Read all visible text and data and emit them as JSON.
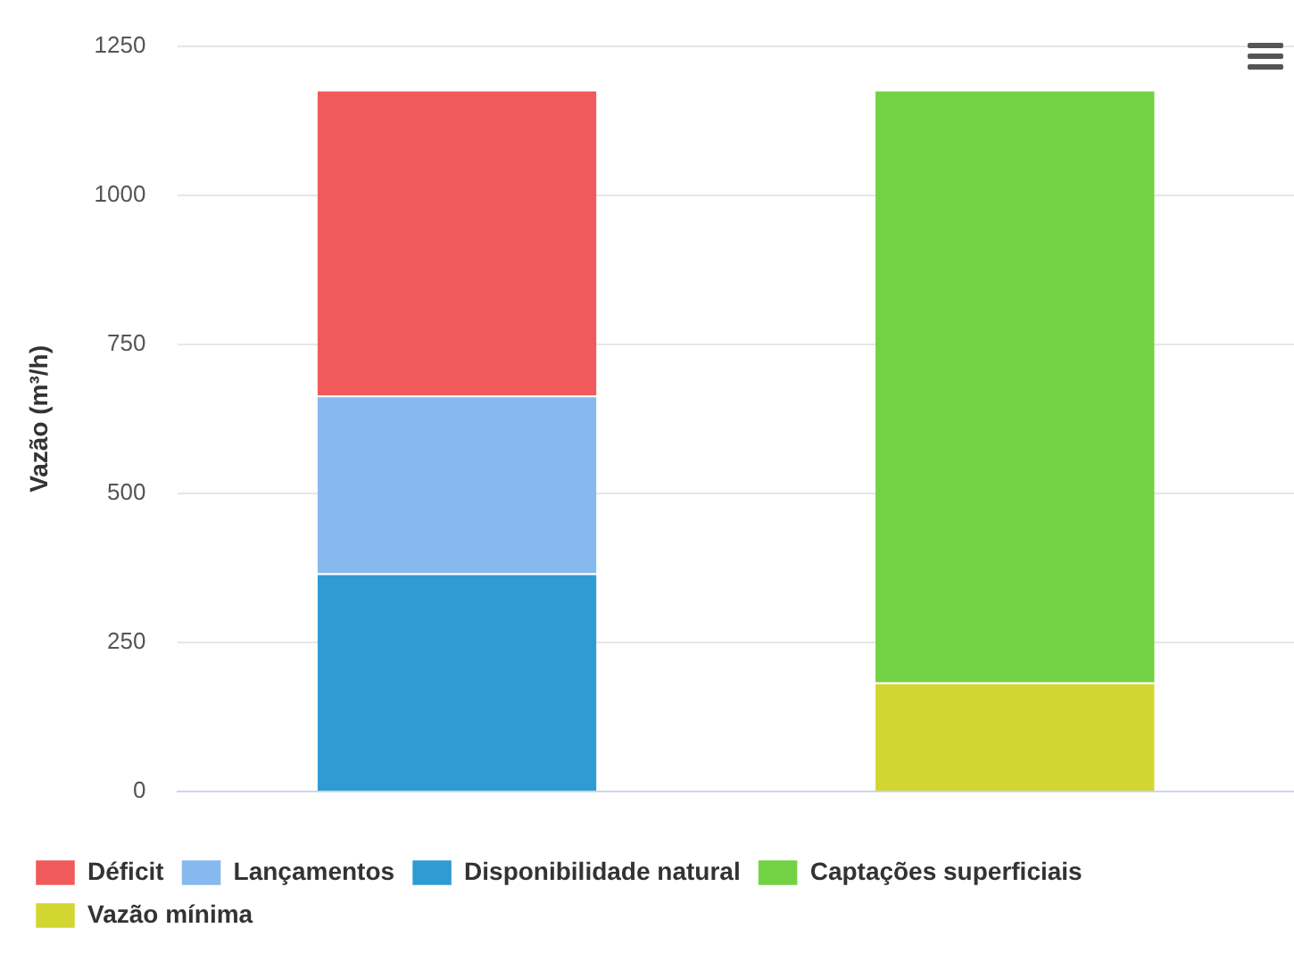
{
  "chart_data": {
    "type": "bar",
    "ylabel": "Vazão (m³/h)",
    "categories": [
      null,
      null
    ],
    "stacked": true,
    "series": [
      {
        "name": "Disponibilidade natural",
        "color": "#2f9bd3",
        "values": [
          366,
          null
        ]
      },
      {
        "name": "Lançamentos",
        "color": "#86b9ee",
        "values": [
          298,
          null
        ]
      },
      {
        "name": "Déficit",
        "color": "#f05a5a",
        "values": [
          513,
          null
        ]
      },
      {
        "name": "Vazão mínima",
        "color": "#d3d630",
        "values": [
          null,
          183
        ]
      },
      {
        "name": "Captações superficiais",
        "color": "#72d244",
        "values": [
          null,
          994
        ]
      }
    ],
    "ylim": [
      0,
      1250
    ],
    "yticks": [
      0,
      250,
      500,
      750,
      1000,
      1250
    ],
    "grid": "y",
    "legend": "bottom left"
  }
}
